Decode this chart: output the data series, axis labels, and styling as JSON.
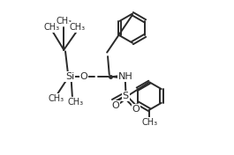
{
  "bg_color": "#ffffff",
  "line_color": "#2a2a2a",
  "line_width": 1.4,
  "font_size": 8.0,
  "font_size_small": 7.0,
  "figsize": [
    2.65,
    1.76
  ],
  "dpi": 100,
  "xlim": [
    0.0,
    1.0
  ],
  "ylim": [
    0.0,
    1.0
  ]
}
